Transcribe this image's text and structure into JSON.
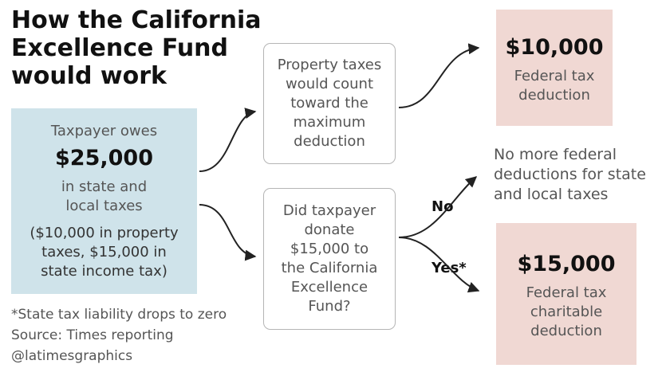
{
  "title": {
    "line1": "How the California",
    "line2": "Excellence Fund",
    "line3": "would work"
  },
  "taxpayer_box": {
    "line1": "Taxpayer owes",
    "amount": "$25,000",
    "line2": "in state and",
    "line3": "local taxes",
    "detail1": "($10,000 in property",
    "detail2": "taxes, $15,000 in",
    "detail3": "state income tax)"
  },
  "property_box": {
    "lines": [
      "Property taxes",
      "would count",
      "toward the",
      "maximum",
      "deduction"
    ]
  },
  "donate_box": {
    "lines": [
      "Did taxpayer",
      "donate",
      "$15,000 to",
      "the California",
      "Excellence",
      "Fund?"
    ]
  },
  "outcome_top": {
    "amount": "$10,000",
    "line1": "Federal tax",
    "line2": "deduction"
  },
  "outcome_no": {
    "lines": [
      "No more federal",
      "deductions for state",
      "and local taxes"
    ]
  },
  "outcome_yes": {
    "amount": "$15,000",
    "line1": "Federal tax",
    "line2": "charitable",
    "line3": "deduction"
  },
  "branch_labels": {
    "no": "No",
    "yes": "Yes*"
  },
  "footnotes": {
    "note": "*State tax liability drops to zero",
    "source": "Source: Times reporting",
    "credit": "@latimesgraphics"
  },
  "colors": {
    "taxpayer_box": "#cfe3ea",
    "outcome_box": "#f0d8d3",
    "arrow": "#222222"
  }
}
